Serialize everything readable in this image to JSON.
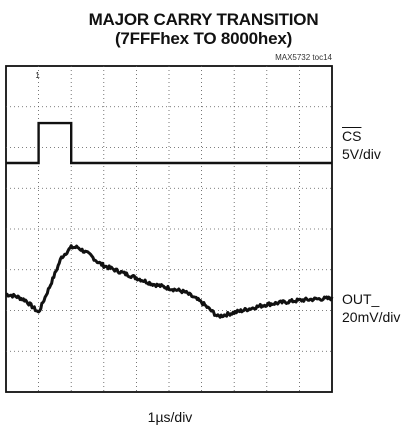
{
  "chart_data": {
    "type": "line",
    "title": "MAJOR CARRY TRANSITION",
    "subtitle": "(7FFFhex TO 8000hex)",
    "figure_code": "MAX5732 toc14",
    "xlabel": "1µs/div",
    "grid": true,
    "x_divisions": 10,
    "y_divisions": 8,
    "x": [
      0,
      0.3,
      0.6,
      1.0,
      1.4,
      1.7,
      2.0,
      2.2,
      2.4,
      2.6,
      2.8,
      3.0,
      3.5,
      4.0,
      4.5,
      5.0,
      5.5,
      6.0,
      6.5,
      7.0,
      7.5,
      8.0,
      8.5,
      9.0,
      9.5,
      10.0
    ],
    "series": [
      {
        "name": "CS",
        "scale": "5V/div",
        "color": "#111111",
        "marker": "1",
        "y": [
          5.62,
          5.62,
          5.62,
          5.62,
          5.62,
          5.62,
          5.62,
          5.62,
          5.62,
          5.62,
          5.62,
          5.62,
          5.62,
          5.62,
          5.62,
          5.62,
          5.62,
          5.62,
          5.62,
          5.62,
          5.62,
          5.62,
          5.62,
          5.62,
          5.62,
          5.62
        ],
        "pulse": {
          "x_start": 1.0,
          "x_end": 2.0,
          "high": 6.6
        }
      },
      {
        "name": "OUT_",
        "scale": "20mV/div",
        "color": "#111111",
        "y": [
          2.4,
          2.35,
          2.25,
          1.95,
          2.7,
          3.3,
          3.55,
          3.55,
          3.45,
          3.35,
          3.2,
          3.1,
          2.95,
          2.8,
          2.65,
          2.55,
          2.45,
          2.2,
          1.85,
          1.95,
          2.05,
          2.15,
          2.2,
          2.25,
          2.28,
          2.3
        ]
      }
    ]
  }
}
